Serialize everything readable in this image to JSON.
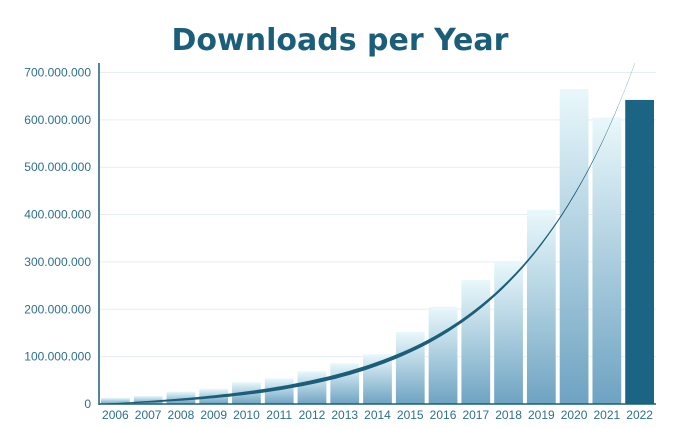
{
  "chart_data": {
    "type": "bar",
    "title": "Downloads per Year",
    "xlabel": "",
    "ylabel": "",
    "ylim": [
      0,
      720000000
    ],
    "grid": true,
    "categories": [
      "2006",
      "2007",
      "2008",
      "2009",
      "2010",
      "2011",
      "2012",
      "2013",
      "2014",
      "2015",
      "2016",
      "2017",
      "2018",
      "2019",
      "2020",
      "2021",
      "2022"
    ],
    "series": [
      {
        "values": [
          13000000,
          17000000,
          26000000,
          32000000,
          46000000,
          54000000,
          69000000,
          86000000,
          105000000,
          152000000,
          205000000,
          262000000,
          300000000,
          410000000,
          665000000,
          605000000,
          642000000
        ]
      }
    ],
    "highlight_category": "2022",
    "y_ticks": [
      {
        "value": 0,
        "label": "0"
      },
      {
        "value": 100000000,
        "label": "100.000.000"
      },
      {
        "value": 200000000,
        "label": "200.000.000"
      },
      {
        "value": 300000000,
        "label": "300.000.000"
      },
      {
        "value": 400000000,
        "label": "400.000.000"
      },
      {
        "value": 500000000,
        "label": "500.000.000"
      },
      {
        "value": 600000000,
        "label": "600.000.000"
      },
      {
        "value": 700000000,
        "label": "700.000.000"
      }
    ],
    "trendline": {
      "type": "exponential",
      "start": [
        2006,
        0
      ],
      "end": [
        2022,
        720000000
      ],
      "color": "#1b5e7a"
    },
    "colors": {
      "title": "#1b5e7a",
      "bar_gradient_top": "#e9f8fb",
      "bar_gradient_bottom": "#6ea3c2",
      "highlight_bar": "#1b6483",
      "tick_text": "#2f6f8d",
      "axis": "#1b5e7a"
    }
  }
}
